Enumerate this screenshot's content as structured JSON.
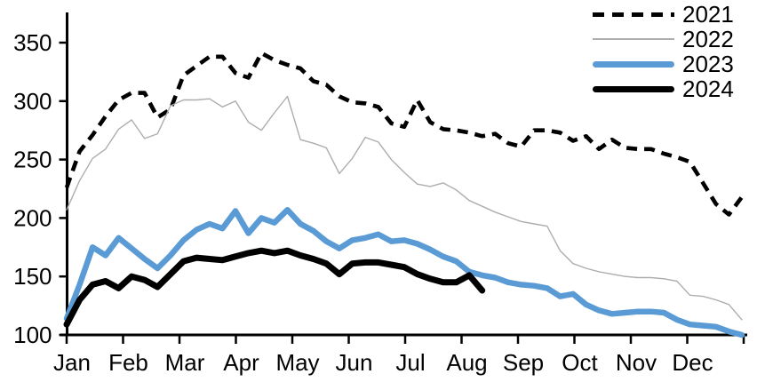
{
  "chart_data": {
    "type": "line",
    "title": "",
    "xlabel": "",
    "ylabel": "",
    "x_axis": {
      "unit": "weekly points across one year",
      "tick_labels": [
        "Jan",
        "Feb",
        "Mar",
        "Apr",
        "May",
        "Jun",
        "Jul",
        "Aug",
        "Sep",
        "Oct",
        "Nov",
        "Dec"
      ],
      "points_per_year": 53
    },
    "y_axis": {
      "ticks": [
        100,
        150,
        200,
        250,
        300,
        350
      ],
      "min": 100,
      "max": 350
    },
    "grid": false,
    "legend": {
      "position": "top-right",
      "entries": [
        "2021",
        "2022",
        "2023",
        "2024"
      ]
    },
    "series": [
      {
        "name": "2021",
        "color": "#000000",
        "line_style": "dashed",
        "line_width": 4.6,
        "values": [
          226,
          257,
          271,
          287,
          301,
          307,
          307,
          286,
          293,
          322,
          330,
          338,
          338,
          324,
          320,
          341,
          335,
          331,
          328,
          317,
          314,
          304,
          299,
          298,
          295,
          281,
          278,
          301,
          282,
          276,
          275,
          273,
          270,
          272,
          264,
          261,
          275,
          275,
          273,
          266,
          270,
          259,
          267,
          260,
          259,
          259,
          255,
          252,
          248,
          230,
          212,
          203,
          218
        ]
      },
      {
        "name": "2022",
        "color": "#ADADAD",
        "line_style": "solid",
        "line_width": 1.4,
        "values": [
          207,
          232,
          251,
          259,
          276,
          284,
          268,
          272,
          296,
          301,
          301,
          302,
          295,
          300,
          282,
          275,
          290,
          304,
          267,
          264,
          260,
          238,
          251,
          269,
          265,
          250,
          239,
          229,
          227,
          230,
          224,
          215,
          210,
          205,
          201,
          197,
          195,
          193,
          172,
          161,
          157,
          154,
          152,
          150,
          149,
          149,
          148,
          146,
          134,
          133,
          130,
          126,
          113
        ]
      },
      {
        "name": "2023",
        "color": "#5B9BD5",
        "line_style": "solid",
        "line_width": 6.5,
        "values": [
          114,
          143,
          175,
          168,
          183,
          174,
          165,
          157,
          168,
          181,
          190,
          195,
          191,
          206,
          187,
          200,
          196,
          207,
          195,
          189,
          180,
          174,
          181,
          183,
          186,
          180,
          181,
          178,
          173,
          167,
          163,
          154,
          151,
          149,
          145,
          143,
          142,
          140,
          133,
          135,
          126,
          121,
          118,
          119,
          120,
          120,
          119,
          113,
          109,
          108,
          107,
          103,
          100
        ]
      },
      {
        "name": "2024",
        "color": "#000000",
        "line_style": "solid",
        "line_width": 7,
        "values": [
          109,
          130,
          143,
          146,
          140,
          150,
          147,
          141,
          152,
          163,
          166,
          165,
          164,
          167,
          170,
          172,
          170,
          172,
          168,
          165,
          161,
          152,
          161,
          162,
          162,
          160,
          158,
          152,
          148,
          145,
          145,
          151,
          138
        ]
      }
    ]
  }
}
